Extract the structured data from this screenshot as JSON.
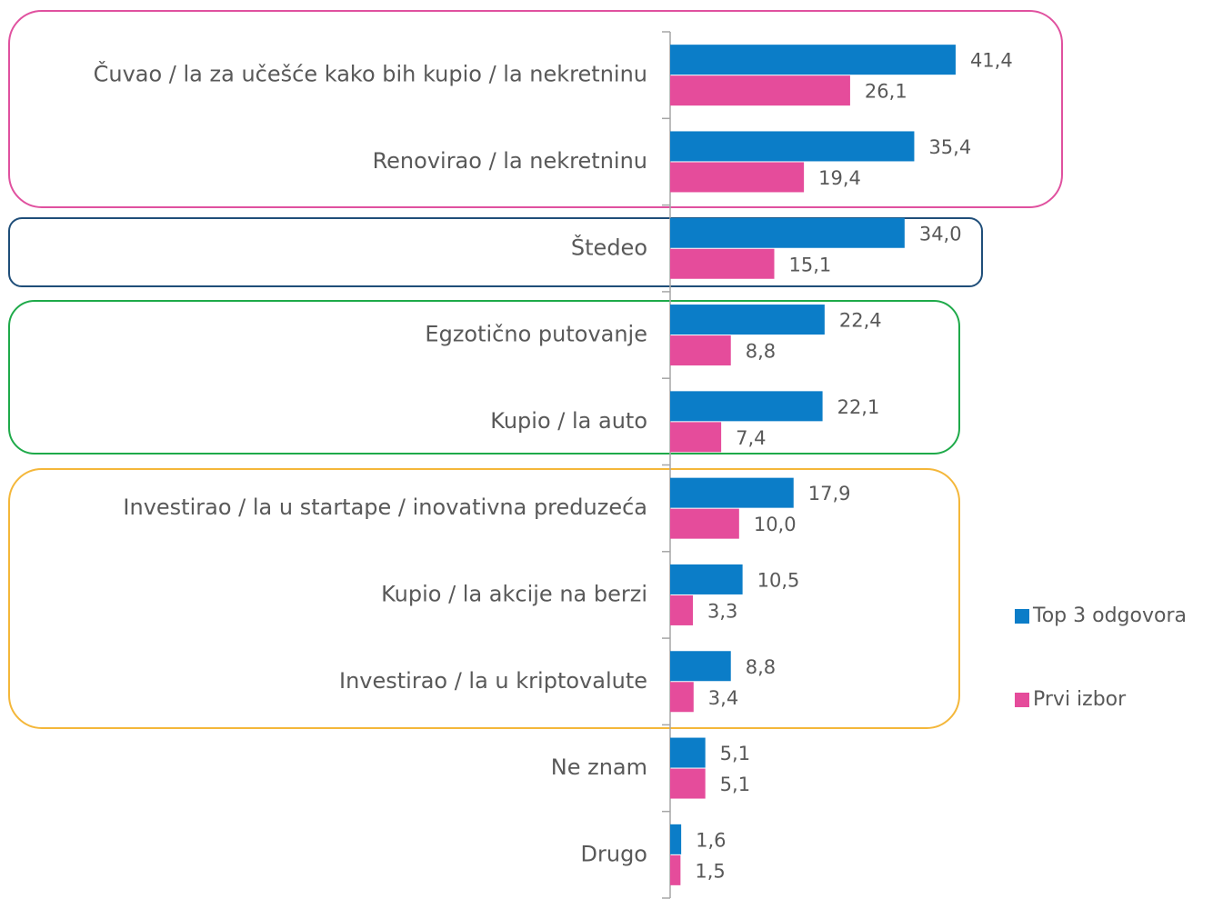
{
  "chart_data": {
    "type": "hbar",
    "categories": [
      "Čuvao / la za učešće kako bih kupio / la nekretninu",
      "Renovirao / la nekretninu",
      "Štedeo",
      "Egzotično putovanje",
      "Kupio / la auto",
      "Investirao / la u startape / inovativna preduzeća",
      "Kupio / la akcije na berzi",
      "Investirao / la u kriptovalute",
      "Ne znam",
      "Drugo"
    ],
    "series": [
      {
        "name": "Top 3 odgovora",
        "color": "#0b7dc8",
        "values": [
          41.4,
          35.4,
          34.0,
          22.4,
          22.1,
          17.9,
          10.5,
          8.8,
          5.1,
          1.6
        ],
        "value_labels": [
          "41,4",
          "35,4",
          "34,0",
          "22,4",
          "22,1",
          "17,9",
          "10,5",
          "8,8",
          "5,1",
          "1,6"
        ]
      },
      {
        "name": "Prvi izbor",
        "color": "#e54c9b",
        "values": [
          26.1,
          19.4,
          15.1,
          8.8,
          7.4,
          10.0,
          3.3,
          3.4,
          5.1,
          1.5
        ],
        "value_labels": [
          "26,1",
          "19,4",
          "15,1",
          "8,8",
          "7,4",
          "10,0",
          "3,3",
          "3,4",
          "5,1",
          "1,5"
        ]
      }
    ],
    "xlim": [
      0,
      60
    ],
    "legend": "right"
  }
}
